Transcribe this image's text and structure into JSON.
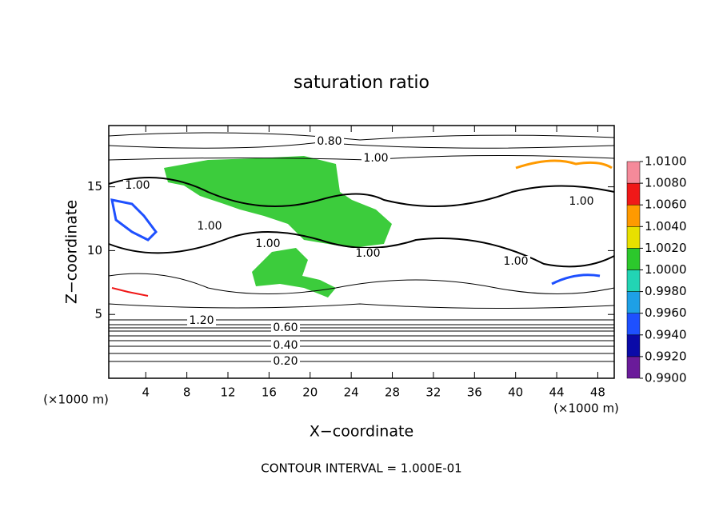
{
  "chart_data": {
    "type": "contour",
    "title": "saturation ratio",
    "xlabel": "X−coordinate",
    "ylabel": "Z−coordinate",
    "x_unit_left": "(×1000 m)",
    "x_unit_right": "(×1000 m)",
    "footer": "CONTOUR INTERVAL = 1.000E-01",
    "xlim": [
      0.4,
      49.6
    ],
    "xticks": [
      4,
      8,
      12,
      16,
      20,
      24,
      28,
      32,
      36,
      40,
      44,
      48
    ],
    "ylim": [
      0,
      19.8
    ],
    "yticks": [
      5,
      10,
      15
    ],
    "colorbar": {
      "lim": [
        0.99,
        1.01
      ],
      "ticks": [
        {
          "value": 0.99,
          "label": "0.9900"
        },
        {
          "value": 0.992,
          "label": "0.9920"
        },
        {
          "value": 0.994,
          "label": "0.9940"
        },
        {
          "value": 0.996,
          "label": "0.9960"
        },
        {
          "value": 0.998,
          "label": "0.9980"
        },
        {
          "value": 1.0,
          "label": "1.0000"
        },
        {
          "value": 1.002,
          "label": "1.0020"
        },
        {
          "value": 1.004,
          "label": "1.0040"
        },
        {
          "value": 1.006,
          "label": "1.0060"
        },
        {
          "value": 1.008,
          "label": "1.0080"
        },
        {
          "value": 1.01,
          "label": "1.0100"
        }
      ],
      "colors": [
        "#6a1b9a",
        "#0a0aa8",
        "#1e50ff",
        "#1ea0e6",
        "#22d4b4",
        "#2cc82c",
        "#e8e000",
        "#ff9a00",
        "#f01818",
        "#f58a9a"
      ]
    },
    "contour_labels": [
      {
        "value": 0.8,
        "label": "0.80"
      },
      {
        "value": 1.0,
        "label": "1.00"
      },
      {
        "value": 1.0,
        "label": "1.00"
      },
      {
        "value": 1.0,
        "label": "1.00"
      },
      {
        "value": 1.0,
        "label": "1.00"
      },
      {
        "value": 1.0,
        "label": "1.00"
      },
      {
        "value": 1.0,
        "label": "1.00"
      },
      {
        "value": 1.0,
        "label": "1.00"
      },
      {
        "value": 1.2,
        "label": "1.20"
      },
      {
        "value": 0.6,
        "label": "0.60"
      },
      {
        "value": 0.4,
        "label": "0.40"
      },
      {
        "value": 0.2,
        "label": "0.20"
      }
    ]
  }
}
